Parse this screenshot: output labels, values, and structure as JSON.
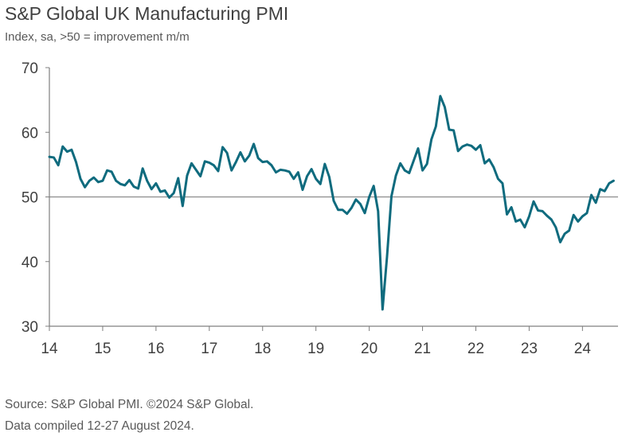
{
  "title": "S&P Global UK Manufacturing PMI",
  "subtitle": "Index, sa, >50 = improvement m/m",
  "source_line1": "Source: S&P Global PMI. ©2024 S&P Global.",
  "source_line2": "Data compiled 12-27 August 2024.",
  "colors": {
    "line": "#0f6b7e",
    "axis": "#7f7f7f",
    "text": "#404040"
  },
  "chart_data": {
    "type": "line",
    "title": "S&P Global UK Manufacturing PMI",
    "ylabel": "Index, sa, >50 = improvement m/m",
    "xlabel": "",
    "ylim": [
      30,
      70
    ],
    "yticks": [
      30,
      40,
      50,
      60,
      70
    ],
    "xlim": [
      2014.0,
      2024.667
    ],
    "xtick_labels": [
      "14",
      "15",
      "16",
      "17",
      "18",
      "19",
      "20",
      "21",
      "22",
      "23",
      "24"
    ],
    "reference_line": 50,
    "series": [
      {
        "name": "UK Manufacturing PMI",
        "start_year": 2014,
        "start_month": 1,
        "values": [
          56.2,
          56.1,
          54.9,
          57.8,
          57.0,
          57.3,
          55.4,
          52.8,
          51.5,
          52.5,
          53.0,
          52.3,
          52.5,
          54.1,
          53.9,
          52.5,
          52.0,
          51.8,
          52.6,
          51.6,
          51.3,
          54.4,
          52.5,
          51.2,
          52.1,
          50.8,
          51.0,
          49.9,
          50.6,
          52.9,
          48.6,
          53.3,
          55.2,
          54.2,
          53.2,
          55.5,
          55.3,
          54.9,
          54.0,
          57.7,
          56.8,
          54.1,
          55.4,
          56.9,
          55.5,
          56.4,
          58.2,
          56.0,
          55.4,
          55.5,
          54.9,
          53.8,
          54.2,
          54.1,
          53.9,
          52.8,
          53.8,
          51.1,
          53.2,
          54.3,
          52.8,
          52.0,
          55.1,
          53.1,
          49.4,
          48.0,
          48.0,
          47.4,
          48.3,
          49.6,
          48.9,
          47.5,
          50.0,
          51.7,
          47.8,
          32.6,
          40.7,
          50.1,
          53.3,
          55.2,
          54.1,
          53.7,
          55.6,
          57.5,
          54.1,
          55.1,
          58.9,
          60.9,
          65.6,
          63.9,
          60.4,
          60.3,
          57.1,
          57.8,
          58.1,
          57.9,
          57.3,
          58.0,
          55.2,
          55.8,
          54.6,
          52.8,
          52.1,
          47.3,
          48.4,
          46.2,
          46.5,
          45.3,
          47.0,
          49.3,
          47.9,
          47.8,
          47.1,
          46.5,
          45.3,
          43.0,
          44.3,
          44.8,
          47.2,
          46.2,
          47.0,
          47.5,
          50.3,
          49.1,
          51.2,
          50.9,
          52.1,
          52.5
        ]
      }
    ]
  }
}
